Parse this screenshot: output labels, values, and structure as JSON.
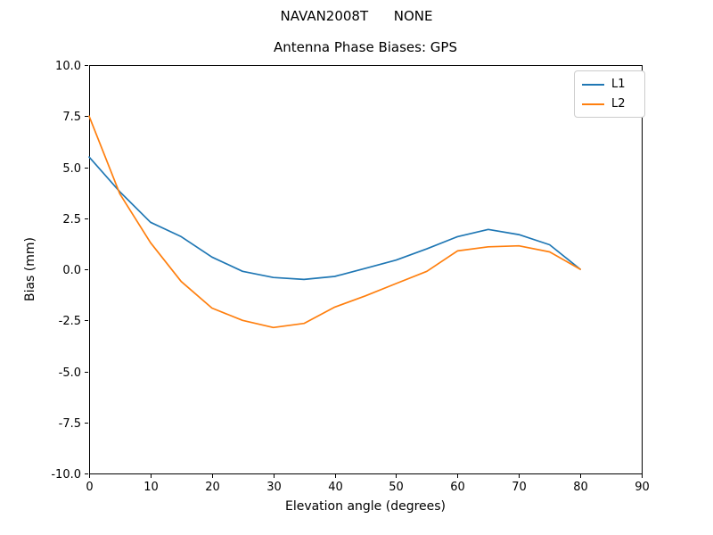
{
  "chart_data": {
    "type": "line",
    "suptitle": "NAVAN2008T      NONE",
    "title": "Antenna Phase Biases: GPS",
    "xlabel": "Elevation angle (degrees)",
    "ylabel": "Bias (mm)",
    "xlim": [
      0,
      90
    ],
    "ylim": [
      -10.0,
      10.0
    ],
    "xticks": [
      0,
      10,
      20,
      30,
      40,
      50,
      60,
      70,
      80,
      90
    ],
    "yticks": [
      10.0,
      7.5,
      5.0,
      2.5,
      0.0,
      -2.5,
      -5.0,
      -7.5,
      -10.0
    ],
    "ytick_labels": [
      "10.0",
      "7.5",
      "5.0",
      "2.5",
      "0.0",
      "-2.5",
      "-5.0",
      "-7.5",
      "-10.0"
    ],
    "grid": false,
    "legend_position": "upper right",
    "axis_color": "#000000",
    "x": [
      0,
      5,
      10,
      15,
      20,
      25,
      30,
      35,
      40,
      45,
      50,
      55,
      60,
      65,
      70,
      75,
      80
    ],
    "series": [
      {
        "name": "L1",
        "color": "#1f77b4",
        "values": [
          5.5,
          3.8,
          2.3,
          1.6,
          0.6,
          -0.1,
          -0.4,
          -0.5,
          -0.35,
          0.05,
          0.45,
          1.0,
          1.6,
          1.95,
          1.7,
          1.2,
          0.0
        ]
      },
      {
        "name": "L2",
        "color": "#ff7f0e",
        "values": [
          7.5,
          3.7,
          1.3,
          -0.6,
          -1.9,
          -2.5,
          -2.85,
          -2.65,
          -1.85,
          -1.3,
          -0.7,
          -0.1,
          0.9,
          1.1,
          1.15,
          0.85,
          0.0
        ]
      }
    ]
  }
}
